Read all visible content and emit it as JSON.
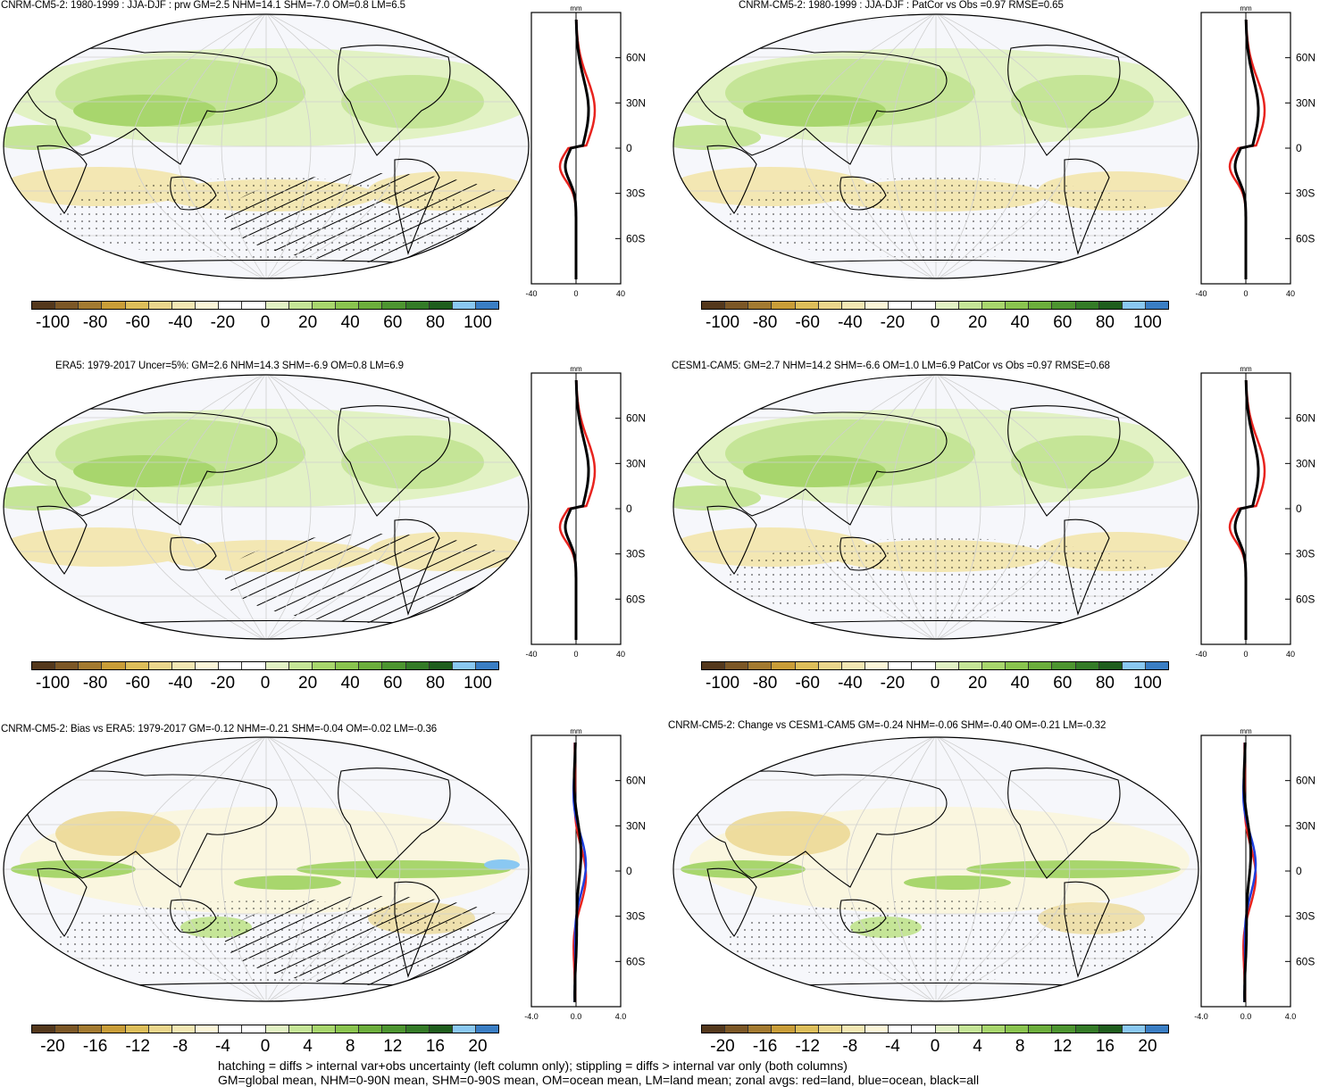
{
  "panels": [
    {
      "title": "CNRM-CM5-2: 1980-1999 : JJA-DJF : prw GM=2.5 NHM=14.1 SHM=-7.0 OM=0.8 LM=6.5",
      "kind": "mean",
      "overlay": "hatch+stipple"
    },
    {
      "title": "CNRM-CM5-2: 1980-1999 : JJA-DJF : PatCor vs Obs =0.97 RMSE=0.65",
      "kind": "mean",
      "overlay": "stipple"
    },
    {
      "title": "ERA5: 1979-2017 Uncer=5%: GM=2.6 NHM=14.3 SHM=-6.9 OM=0.8 LM=6.9",
      "kind": "mean",
      "overlay": "hatch"
    },
    {
      "title": "CESM1-CAM5: GM=2.7 NHM=14.2 SHM=-6.6 OM=1.0 LM=6.9 PatCor vs Obs =0.97 RMSE=0.68",
      "kind": "mean",
      "overlay": "stipple"
    },
    {
      "title": "CNRM-CM5-2: Bias vs ERA5: 1979-2017 GM=-0.12 NHM=-0.21 SHM=-0.04 OM=-0.02 LM=-0.36",
      "kind": "diff",
      "overlay": "hatch+stipple"
    },
    {
      "title": "CNRM-CM5-2: Change vs CESM1-CAM5 GM=-0.24 NHM=-0.06 SHM=-0.40 OM=-0.21 LM=-0.32",
      "kind": "diff",
      "overlay": "stipple"
    }
  ],
  "zonal": {
    "unit": "mm",
    "lat_ticks": [
      "60N",
      "30N",
      "0",
      "30S",
      "60S"
    ],
    "mean_xticks": [
      "-40",
      "0",
      "40"
    ],
    "diff_xticks": [
      "-4.0",
      "0.0",
      "4.0"
    ],
    "legend": {
      "land": "#e8231e",
      "ocean": "#1f3fe0",
      "all": "#000000"
    }
  },
  "colorbars": {
    "mean_labels": [
      "-100",
      "-80",
      "-60",
      "-40",
      "-20",
      "0",
      "20",
      "40",
      "60",
      "80",
      "100"
    ],
    "diff_labels": [
      "-20",
      "-16",
      "-12",
      "-8",
      "-4",
      "0",
      "4",
      "8",
      "12",
      "16",
      "20"
    ],
    "colors": [
      "#54381c",
      "#7c5726",
      "#a37a30",
      "#c99d38",
      "#ddbe5a",
      "#ebd68c",
      "#f3e7b3",
      "#fbf5d8",
      "#ffffff",
      "#ffffff",
      "#e2f2c4",
      "#c5e597",
      "#a8d66d",
      "#8ac44f",
      "#6cae3c",
      "#4d9530",
      "#347b27",
      "#1f5e1d",
      "#8ac8f2",
      "#3a7ec4"
    ]
  },
  "footer": {
    "line1": "hatching = diffs > internal var+obs uncertainty (left column only); stippling = diffs > internal var only (both columns)",
    "line2": "GM=global mean, NHM=0-90N mean, SHM=0-90S mean, OM=ocean mean, LM=land mean; zonal avgs: red=land, blue=ocean, black=all"
  }
}
